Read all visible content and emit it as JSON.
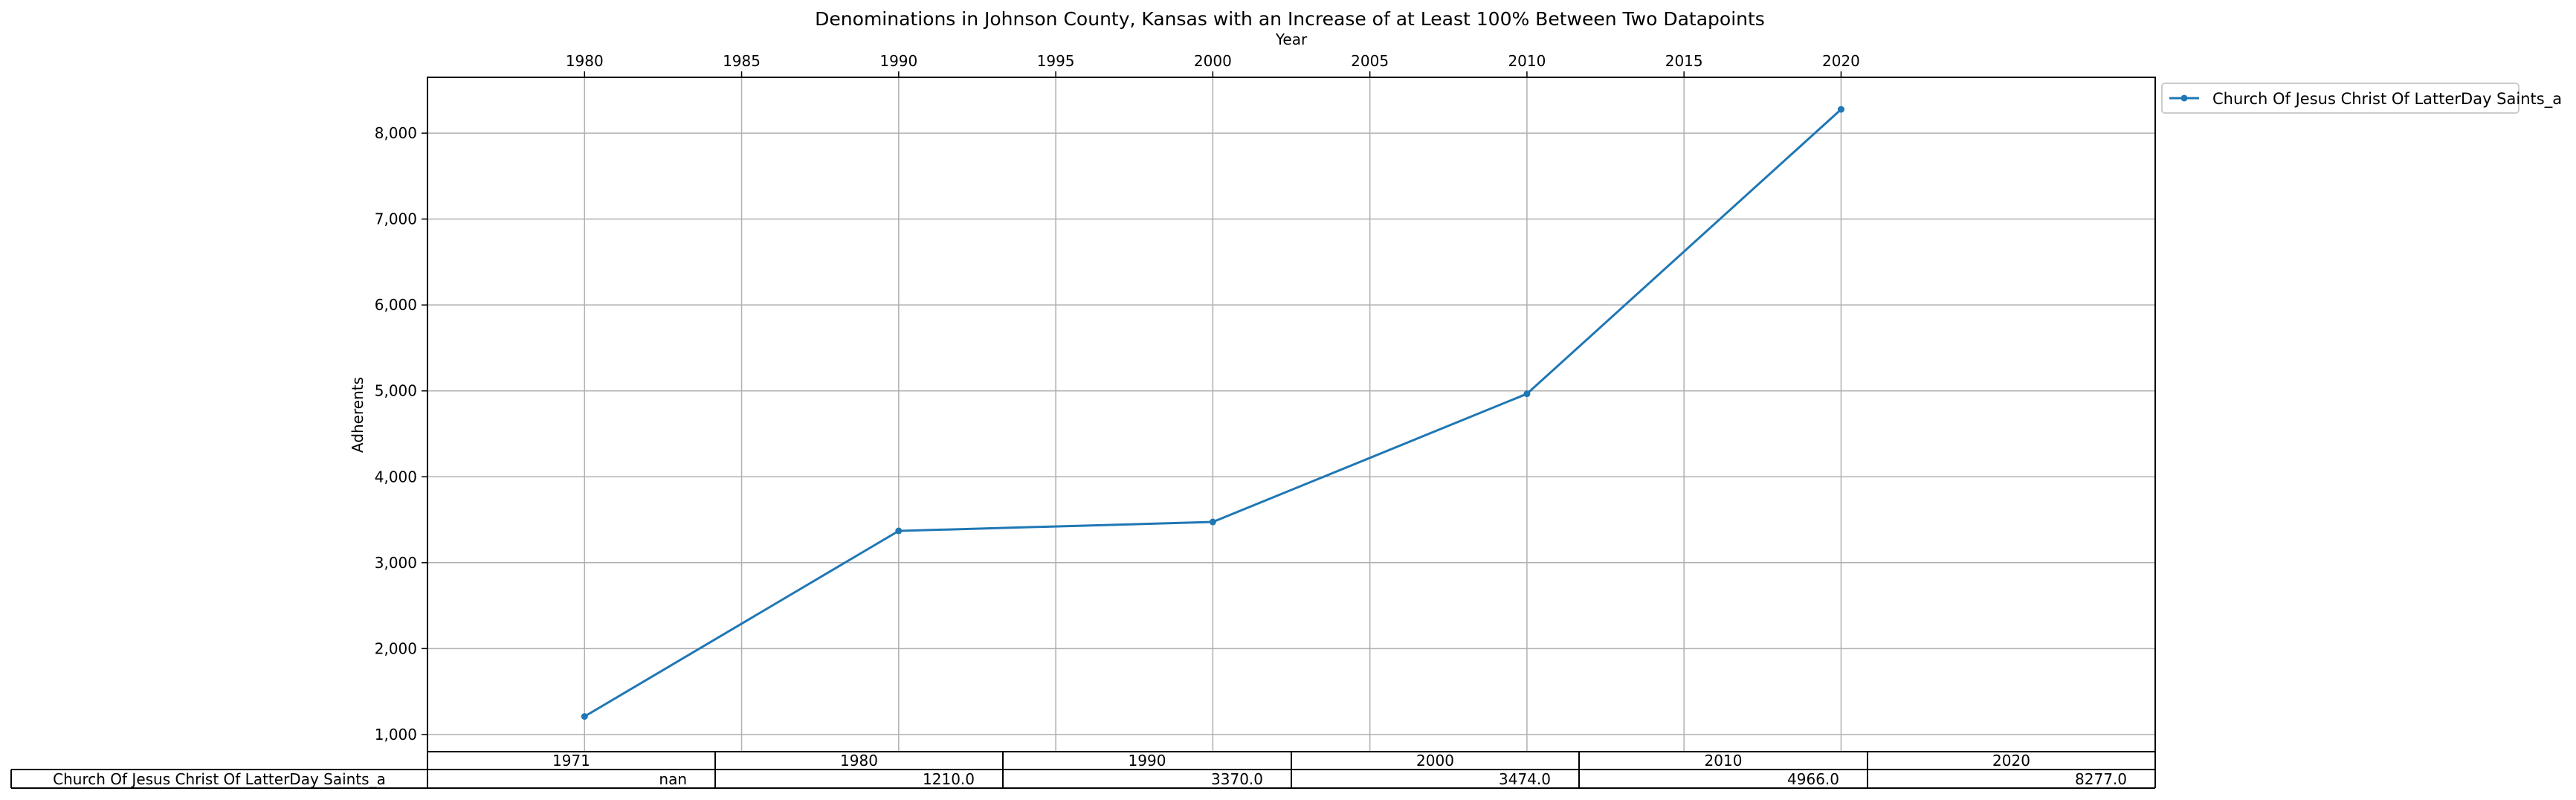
{
  "chart_data": {
    "type": "line",
    "title": "Denominations in Johnson County, Kansas with an Increase of at Least 100% Between Two Datapoints",
    "xlabel": "Year",
    "ylabel": "Adherents",
    "xlim": [
      1975,
      2030
    ],
    "ylim": [
      800,
      8650
    ],
    "x_ticks": [
      1980,
      1985,
      1990,
      1995,
      2000,
      2005,
      2010,
      2015,
      2020
    ],
    "x_tick_labels": [
      "1980",
      "1985",
      "1990",
      "1995",
      "2000",
      "2005",
      "2010",
      "2015",
      "2020"
    ],
    "y_ticks": [
      1000,
      2000,
      3000,
      4000,
      5000,
      6000,
      7000,
      8000
    ],
    "y_tick_labels": [
      "1,000",
      "2,000",
      "3,000",
      "4,000",
      "5,000",
      "6,000",
      "7,000",
      "8,000"
    ],
    "x_axis_position": "top",
    "grid": true,
    "legend_position": "outside-top-right",
    "series": [
      {
        "name": "Church Of Jesus Christ Of LatterDay Saints_a",
        "color": "#1f77b4",
        "x": [
          1980,
          1990,
          2000,
          2010,
          2020
        ],
        "values": [
          1210,
          3370,
          3474,
          4966,
          8277
        ]
      }
    ],
    "table": {
      "columns": [
        "1971",
        "1980",
        "1990",
        "2000",
        "2010",
        "2020"
      ],
      "rows": [
        {
          "label": "Church Of Jesus Christ Of LatterDay Saints_a",
          "cells": [
            "nan",
            "1210.0",
            "3370.0",
            "3474.0",
            "4966.0",
            "8277.0"
          ]
        }
      ]
    }
  }
}
